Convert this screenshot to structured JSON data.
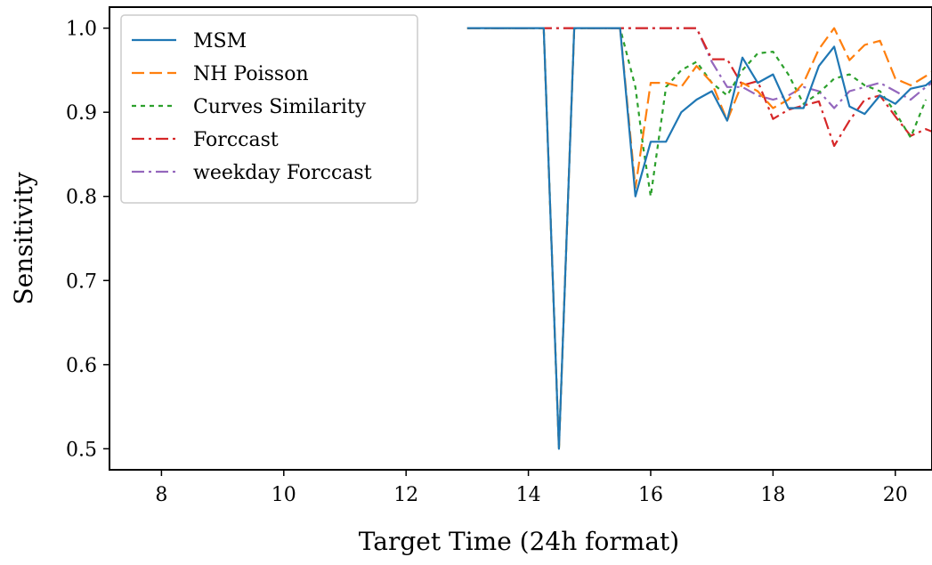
{
  "chart_data": {
    "type": "line",
    "title": "",
    "xlabel": "Target Time (24h format)",
    "ylabel": "Sensitivity",
    "xlim": [
      7.15,
      20.6
    ],
    "ylim": [
      0.475,
      1.025
    ],
    "x_ticks": [
      8,
      10,
      12,
      14,
      16,
      18,
      20
    ],
    "y_ticks": [
      0.5,
      0.6,
      0.7,
      0.8,
      0.9,
      1.0
    ],
    "x_tick_labels": [
      "8",
      "10",
      "12",
      "14",
      "16",
      "18",
      "20"
    ],
    "y_tick_labels": [
      "0.5",
      "0.6",
      "0.7",
      "0.8",
      "0.9",
      "1.0"
    ],
    "grid": false,
    "legend_position": "top-left",
    "series": [
      {
        "name": "weekday Forccast",
        "color": "#9467bd",
        "dash": "dashdot",
        "x": [
          13.0,
          13.5,
          14.0,
          14.5,
          15.0,
          15.5,
          16.0,
          16.5,
          16.75,
          17.0,
          17.25,
          17.5,
          17.75,
          18.0,
          18.25,
          18.5,
          18.75,
          19.0,
          19.25,
          19.5,
          19.75,
          20.0,
          20.25,
          20.5,
          20.6
        ],
        "y": [
          1.0,
          1.0,
          1.0,
          1.0,
          1.0,
          1.0,
          1.0,
          1.0,
          1.0,
          0.96,
          0.93,
          0.93,
          0.92,
          0.915,
          0.92,
          0.93,
          0.925,
          0.905,
          0.925,
          0.93,
          0.935,
          0.925,
          0.915,
          0.93,
          0.935
        ]
      },
      {
        "name": "Forccast",
        "color": "#d62728",
        "dash": "dashdot",
        "x": [
          13.0,
          13.5,
          14.0,
          14.5,
          15.0,
          15.5,
          16.0,
          16.5,
          16.75,
          17.0,
          17.25,
          17.5,
          17.75,
          18.0,
          18.25,
          18.5,
          18.75,
          19.0,
          19.25,
          19.5,
          19.75,
          20.0,
          20.25,
          20.5,
          20.6
        ],
        "y": [
          1.0,
          1.0,
          1.0,
          1.0,
          1.0,
          1.0,
          1.0,
          1.0,
          1.0,
          0.963,
          0.963,
          0.932,
          0.937,
          0.892,
          0.903,
          0.908,
          0.913,
          0.86,
          0.89,
          0.915,
          0.92,
          0.895,
          0.872,
          0.88,
          0.877
        ]
      },
      {
        "name": "Curves Similarity",
        "color": "#2ca02c",
        "dash": "dotted",
        "x": [
          13.0,
          13.5,
          14.0,
          14.25,
          14.5,
          14.75,
          15.0,
          15.5,
          15.75,
          15.875,
          16.0,
          16.25,
          16.5,
          16.75,
          17.0,
          17.25,
          17.5,
          17.75,
          18.0,
          18.25,
          18.5,
          18.75,
          19.0,
          19.25,
          19.5,
          19.75,
          20.0,
          20.25,
          20.5
        ],
        "y": [
          1.0,
          1.0,
          1.0,
          1.0,
          0.5,
          1.0,
          1.0,
          1.0,
          0.93,
          0.86,
          0.8,
          0.93,
          0.95,
          0.96,
          0.935,
          0.92,
          0.95,
          0.97,
          0.972,
          0.945,
          0.91,
          0.923,
          0.94,
          0.945,
          0.932,
          0.925,
          0.9,
          0.87,
          0.915
        ]
      },
      {
        "name": "NH Poisson",
        "color": "#ff7f0e",
        "dash": "dashed",
        "x": [
          13.0,
          13.5,
          14.0,
          14.25,
          14.5,
          14.75,
          15.0,
          15.5,
          15.75,
          16.0,
          16.25,
          16.5,
          16.75,
          17.0,
          17.25,
          17.5,
          17.75,
          18.0,
          18.25,
          18.5,
          18.75,
          19.0,
          19.25,
          19.5,
          19.75,
          20.0,
          20.25,
          20.5,
          20.6
        ],
        "y": [
          1.0,
          1.0,
          1.0,
          1.0,
          0.5,
          1.0,
          1.0,
          1.0,
          0.81,
          0.935,
          0.935,
          0.93,
          0.955,
          0.935,
          0.89,
          0.935,
          0.925,
          0.905,
          0.915,
          0.935,
          0.975,
          1.0,
          0.962,
          0.98,
          0.985,
          0.94,
          0.932,
          0.943,
          0.948
        ]
      },
      {
        "name": "MSM",
        "color": "#1f77b4",
        "dash": "solid",
        "x": [
          13.0,
          13.5,
          14.0,
          14.25,
          14.5,
          14.75,
          15.0,
          15.5,
          15.75,
          16.0,
          16.25,
          16.5,
          16.75,
          17.0,
          17.25,
          17.5,
          17.75,
          18.0,
          18.25,
          18.5,
          18.75,
          19.0,
          19.25,
          19.5,
          19.75,
          20.0,
          20.25,
          20.5,
          20.6
        ],
        "y": [
          1.0,
          1.0,
          1.0,
          1.0,
          0.5,
          1.0,
          1.0,
          1.0,
          0.8,
          0.865,
          0.865,
          0.9,
          0.915,
          0.925,
          0.89,
          0.965,
          0.935,
          0.945,
          0.905,
          0.905,
          0.955,
          0.978,
          0.907,
          0.898,
          0.92,
          0.91,
          0.928,
          0.932,
          0.938
        ]
      }
    ],
    "legend_order": [
      "MSM",
      "NH Poisson",
      "Curves Similarity",
      "Forccast",
      "weekday Forccast"
    ]
  }
}
